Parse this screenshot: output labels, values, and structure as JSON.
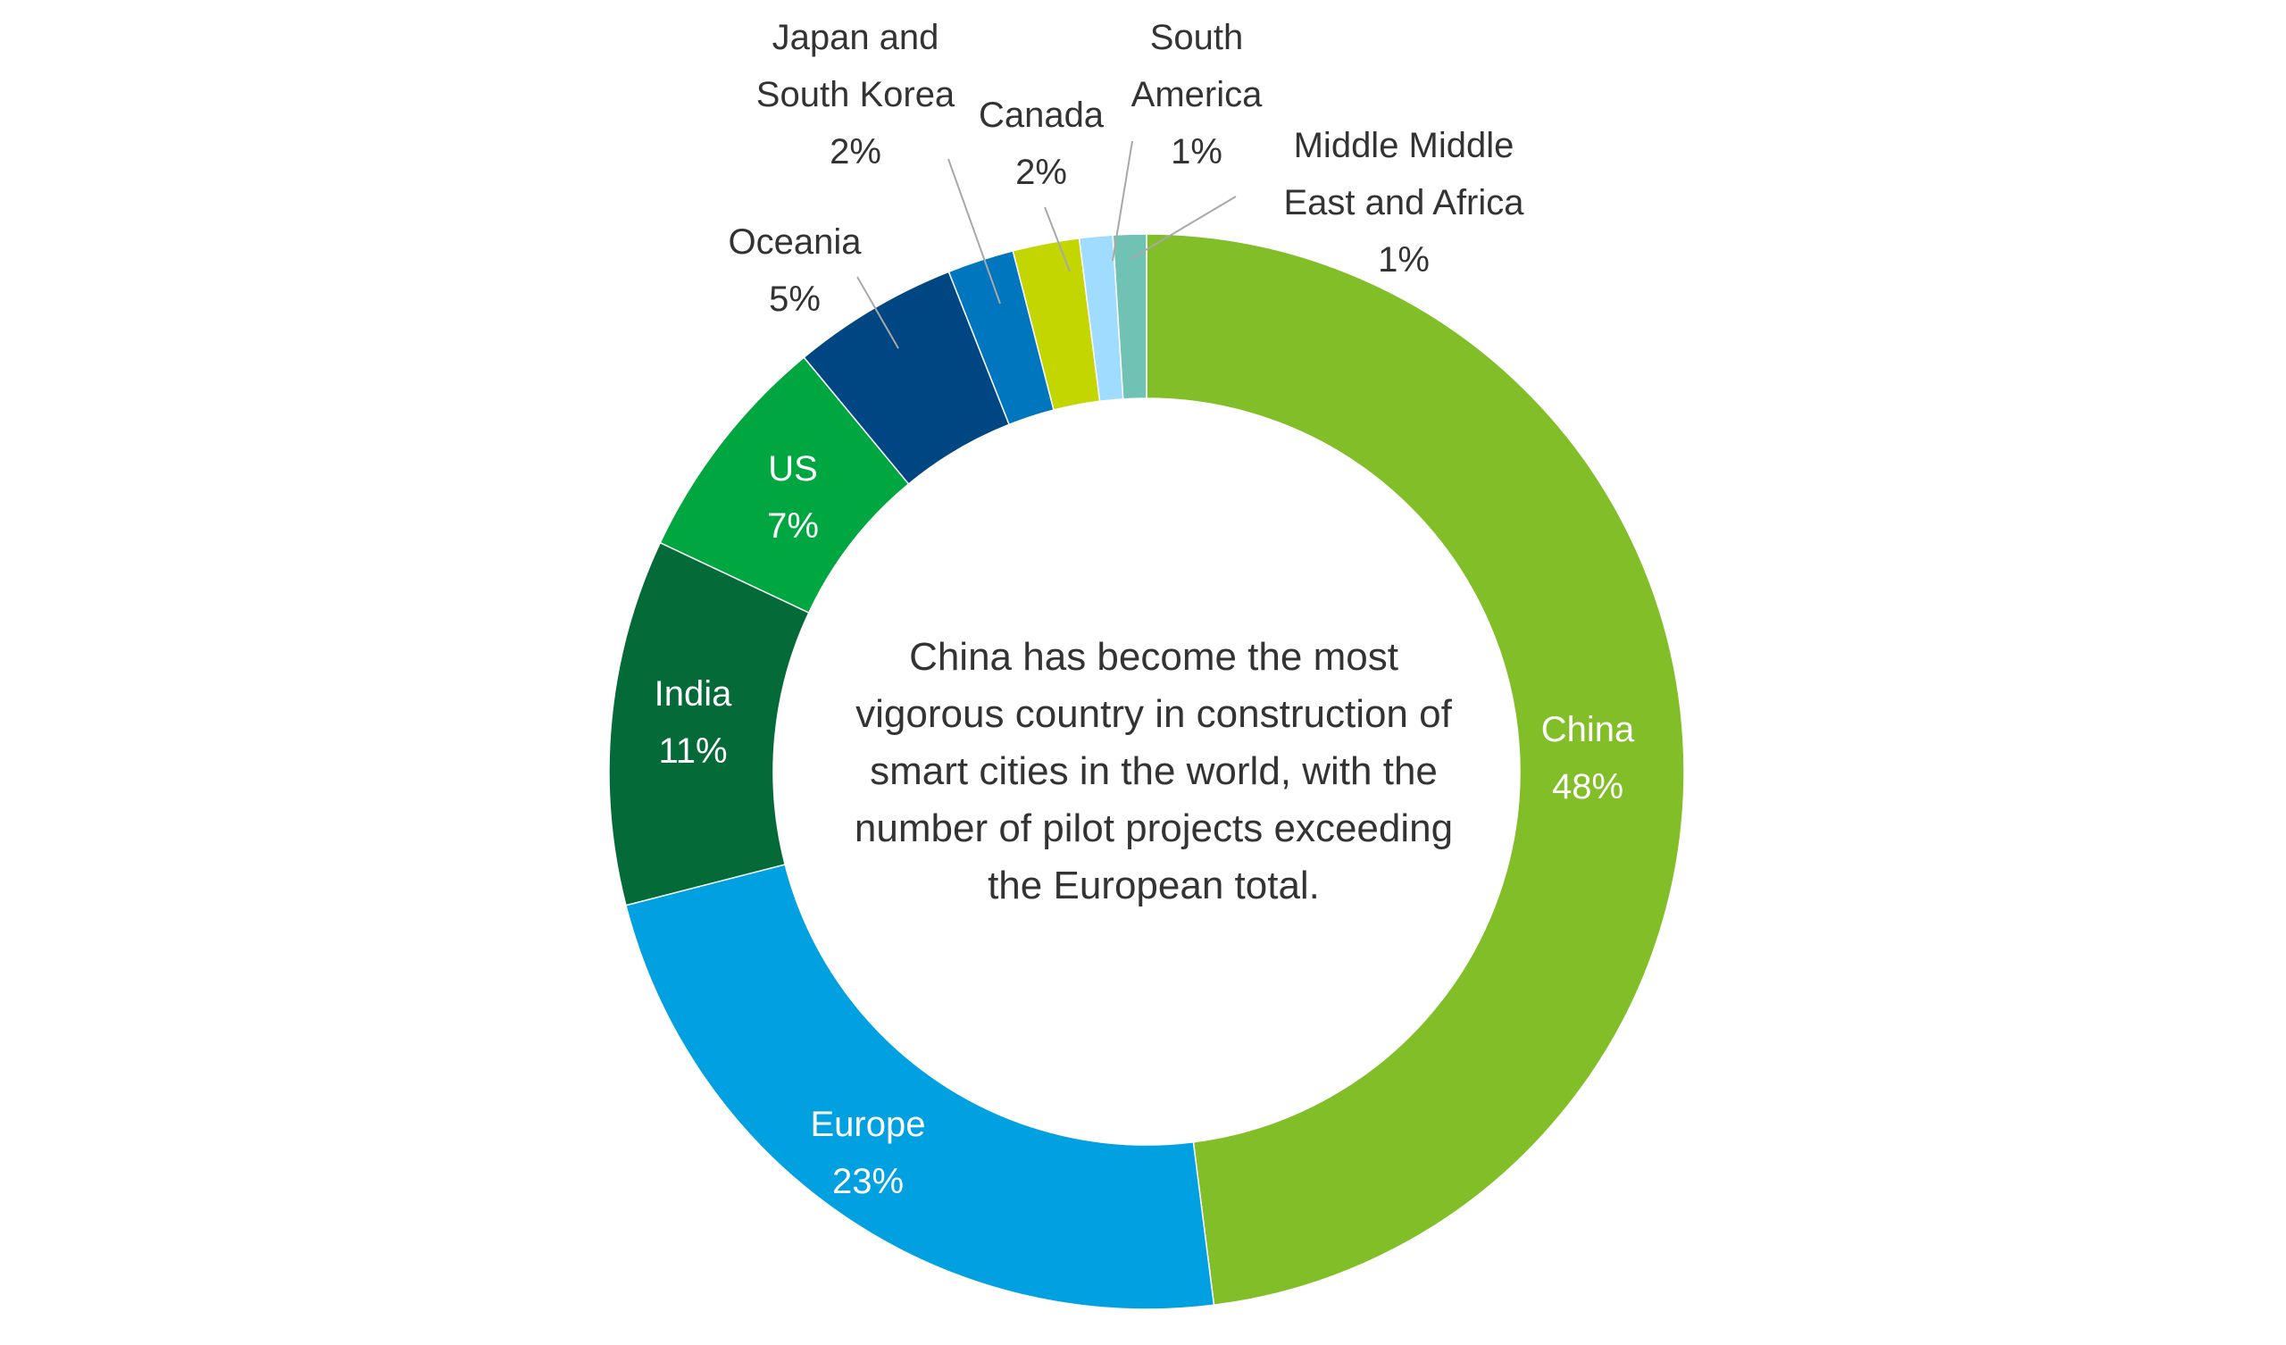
{
  "chart_data": {
    "type": "pie",
    "variant": "donut",
    "center_text": [
      "China has become the most",
      "vigorous country in construction of",
      "smart cities in the world, with the",
      "number of pilot projects exceeding",
      "the European total."
    ],
    "slices": [
      {
        "label": [
          "China"
        ],
        "percent_label": "48%",
        "value": 48,
        "color": "#82be28",
        "label_color": "#ffffff"
      },
      {
        "label": [
          "Europe"
        ],
        "percent_label": "23%",
        "value": 23,
        "color": "#00a0e1",
        "label_color": "#ffffff"
      },
      {
        "label": [
          "India"
        ],
        "percent_label": "11%",
        "value": 11,
        "color": "#046a38",
        "label_color": "#ffffff"
      },
      {
        "label": [
          "US"
        ],
        "percent_label": "7%",
        "value": 7,
        "color": "#00a63f",
        "label_color": "#ffffff"
      },
      {
        "label": [
          "Oceania"
        ],
        "percent_label": "5%",
        "value": 5,
        "color": "#004682",
        "label_color": "#333333"
      },
      {
        "label": [
          "Japan and",
          "South Korea"
        ],
        "percent_label": "2%",
        "value": 2,
        "color": "#0076be",
        "label_color": "#333333"
      },
      {
        "label": [
          "Canada"
        ],
        "percent_label": "2%",
        "value": 2,
        "color": "#c4d600",
        "label_color": "#333333"
      },
      {
        "label": [
          "South",
          "America"
        ],
        "percent_label": "1%",
        "value": 1,
        "color": "#a0dcff",
        "label_color": "#333333"
      },
      {
        "label": [
          "Middle Middle",
          "East and Africa"
        ],
        "percent_label": "1%",
        "value": 1,
        "color": "#6fc2b4",
        "label_color": "#333333"
      }
    ]
  }
}
